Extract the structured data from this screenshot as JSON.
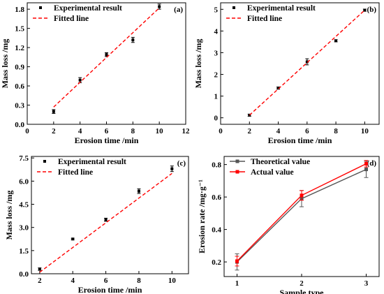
{
  "chart_data": [
    {
      "type": "scatter",
      "panel_label": "(a)",
      "xlabel": "Erosion time /min",
      "ylabel": "Mass loss /mg",
      "xlim": [
        0,
        12
      ],
      "ylim": [
        0,
        1.9
      ],
      "xticks": [
        "0",
        "2",
        "4",
        "6",
        "8",
        "10",
        "12"
      ],
      "yticks": [
        "0.0",
        "0.3",
        "0.6",
        "0.9",
        "1.2",
        "1.5",
        "1.8"
      ],
      "xtick_values": [
        0,
        2,
        4,
        6,
        8,
        10,
        12
      ],
      "ytick_values": [
        0,
        0.3,
        0.6,
        0.9,
        1.2,
        1.5,
        1.8
      ],
      "legend_position": "top-left",
      "series": [
        {
          "name": "Experimental result",
          "kind": "points",
          "color": "#000000",
          "x": [
            2,
            4,
            6,
            8,
            10
          ],
          "y": [
            0.2,
            0.69,
            1.09,
            1.32,
            1.84
          ],
          "err": [
            0.03,
            0.04,
            0.03,
            0.04,
            0.04
          ]
        },
        {
          "name": "Fitted line",
          "kind": "dashed",
          "color": "#ff0000",
          "x": [
            2,
            10
          ],
          "y": [
            0.27,
            1.82
          ]
        }
      ]
    },
    {
      "type": "scatter",
      "panel_label": "(b)",
      "xlabel": "Erosion time /min",
      "ylabel": "Mass loss /mg",
      "xlim": [
        0,
        11
      ],
      "ylim": [
        -0.3,
        5.3
      ],
      "xticks": [
        "0",
        "2",
        "4",
        "6",
        "8",
        "10"
      ],
      "yticks": [
        "0",
        "1",
        "2",
        "3",
        "4",
        "5"
      ],
      "xtick_values": [
        0,
        2,
        4,
        6,
        8,
        10
      ],
      "ytick_values": [
        0,
        1,
        2,
        3,
        4,
        5
      ],
      "legend_position": "top-left",
      "series": [
        {
          "name": "Experimental result",
          "kind": "points",
          "color": "#000000",
          "x": [
            2,
            4,
            6,
            8,
            10
          ],
          "y": [
            0.12,
            1.37,
            2.58,
            3.55,
            4.96
          ],
          "err": [
            0.05,
            0.05,
            0.14,
            0.05,
            0.05
          ]
        },
        {
          "name": "Fitted line",
          "kind": "dashed",
          "color": "#ff0000",
          "x": [
            2,
            10
          ],
          "y": [
            0.12,
            4.96
          ]
        }
      ]
    },
    {
      "type": "scatter",
      "panel_label": "(c)",
      "xlabel": "Erosion time /min",
      "ylabel": "Mass loss /mg",
      "xlim": [
        1.5,
        11.0
      ],
      "ylim": [
        0,
        7.6
      ],
      "xticks": [
        "2",
        "4",
        "6",
        "8",
        "10"
      ],
      "yticks": [
        "0.0",
        "1.5",
        "3.0",
        "4.5",
        "6.0",
        "7.5"
      ],
      "xtick_values": [
        2,
        4,
        6,
        8,
        10
      ],
      "ytick_values": [
        0,
        1.5,
        3.0,
        4.5,
        6.0,
        7.5
      ],
      "legend_position": "top-left",
      "series": [
        {
          "name": "Experimental result",
          "kind": "points",
          "color": "#000000",
          "x": [
            2,
            4,
            6,
            8,
            10
          ],
          "y": [
            0.3,
            2.25,
            3.5,
            5.35,
            6.8
          ],
          "err": [
            0.08,
            0.05,
            0.1,
            0.15,
            0.18
          ]
        },
        {
          "name": "Fitted line",
          "kind": "dashed",
          "color": "#ff0000",
          "x": [
            2,
            10
          ],
          "y": [
            0.1,
            6.5
          ]
        }
      ]
    },
    {
      "type": "line",
      "panel_label": "(d)",
      "xlabel": "Sample type",
      "ylabel": "Erosion rate /mg·g⁻¹",
      "xlim": [
        0.8,
        3.2
      ],
      "ylim": [
        0.11,
        0.85
      ],
      "xticks": [
        "1",
        "2",
        "3"
      ],
      "yticks": [
        "0.2",
        "0.4",
        "0.6",
        "0.8"
      ],
      "xtick_values": [
        1,
        2,
        3
      ],
      "ytick_values": [
        0.2,
        0.4,
        0.6,
        0.8
      ],
      "legend_position": "top-left",
      "series": [
        {
          "name": "Theoretical value",
          "kind": "line",
          "color": "#555555",
          "x": [
            1,
            2,
            3
          ],
          "y": [
            0.2,
            0.59,
            0.77
          ],
          "err": [
            0.05,
            0.05,
            0.05
          ]
        },
        {
          "name": "Actual value",
          "kind": "line",
          "color": "#ff0000",
          "x": [
            1,
            2,
            3
          ],
          "y": [
            0.205,
            0.61,
            0.805
          ],
          "err": [
            0.03,
            0.03,
            0.02
          ]
        }
      ]
    }
  ]
}
